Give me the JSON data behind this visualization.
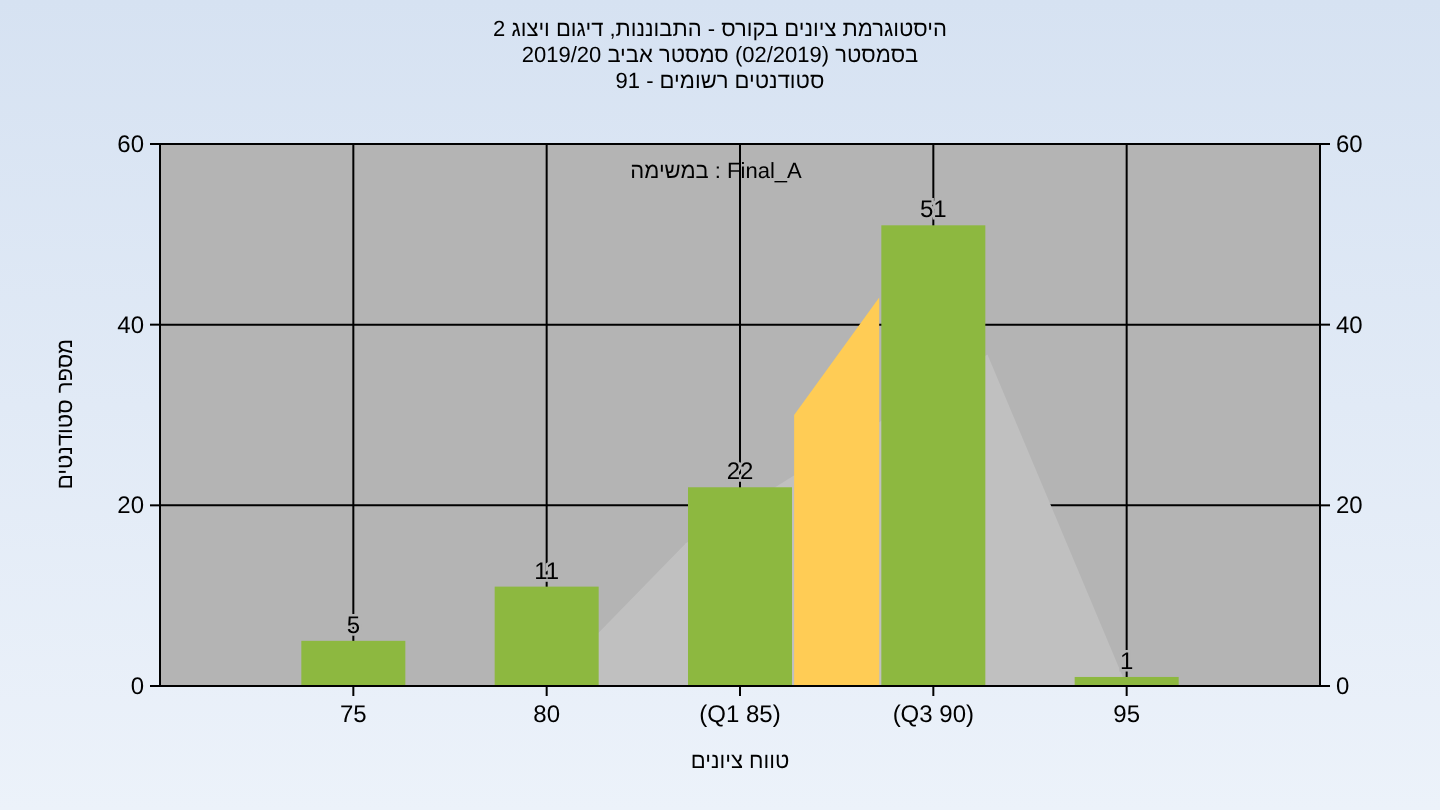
{
  "chart_data": {
    "type": "bar",
    "title": "היסטוגרמת ציונים בקורס - התבוננות, דיגום ויצוג 2",
    "subtitle": "בסמסטר (02/2019) סמסטר אביב 2019/20",
    "annotations": [
      "סטודנטים רשומים - 91",
      "Final_A : במשימה"
    ],
    "xlabel": "טווח ציונים",
    "ylabel": "מספר סטודנטים",
    "x": [
      75,
      80,
      85,
      90,
      95
    ],
    "series": [
      {
        "type": "area",
        "color": "#c0c0c0",
        "x": [
          80,
          83.6,
          91.4,
          95
        ],
        "values": [
          0,
          15.8,
          36.7,
          0
        ]
      },
      {
        "type": "area",
        "color": "#ffcc55",
        "x": [
          86.4,
          88.6
        ],
        "values": [
          30,
          43
        ]
      },
      {
        "color": "#8db840",
        "values": [
          5,
          11,
          22,
          51,
          1
        ],
        "value_labels": [
          "5",
          "11",
          "22",
          "51",
          "1"
        ]
      }
    ],
    "xlim": [
      70,
      100
    ],
    "xticks": [
      75,
      80,
      {
        "value": 85,
        "label": "(Q1 85)"
      },
      {
        "value": 90,
        "label": "(Q3 90)"
      },
      95
    ],
    "ylim": [
      0,
      60
    ],
    "yticks": [
      0,
      20,
      40,
      60
    ],
    "y2lim": [
      0,
      60
    ],
    "y2ticks": [
      0,
      20,
      40,
      60
    ],
    "grid": true
  }
}
